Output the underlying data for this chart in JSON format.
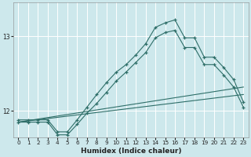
{
  "xlabel": "Humidex (Indice chaleur)",
  "bg_color": "#cde8ec",
  "grid_color": "#ffffff",
  "line_color": "#2e6e68",
  "xlim": [
    -0.5,
    23.5
  ],
  "ylim": [
    11.65,
    13.45
  ],
  "yticks": [
    12,
    13
  ],
  "xticks": [
    0,
    1,
    2,
    3,
    4,
    5,
    6,
    7,
    8,
    9,
    10,
    11,
    12,
    13,
    14,
    15,
    16,
    17,
    18,
    19,
    20,
    21,
    22,
    23
  ],
  "series1_x": [
    0,
    1,
    2,
    3,
    4,
    5,
    6,
    7,
    8,
    9,
    10,
    11,
    12,
    13,
    14,
    15,
    16,
    17,
    18,
    19,
    20,
    21,
    22,
    23
  ],
  "series1_y": [
    11.88,
    11.88,
    11.88,
    11.88,
    11.72,
    11.72,
    11.88,
    12.05,
    12.22,
    12.38,
    12.52,
    12.62,
    12.75,
    12.9,
    13.12,
    13.18,
    13.22,
    12.98,
    12.98,
    12.72,
    12.72,
    12.58,
    12.42,
    12.12
  ],
  "series2_x": [
    0,
    1,
    2,
    3,
    4,
    5,
    6,
    7,
    8,
    9,
    10,
    11,
    12,
    13,
    14,
    15,
    16,
    17,
    18,
    19,
    20,
    21,
    22,
    23
  ],
  "series2_y": [
    11.85,
    11.85,
    11.85,
    11.85,
    11.68,
    11.68,
    11.82,
    11.97,
    12.1,
    12.25,
    12.4,
    12.52,
    12.65,
    12.78,
    12.98,
    13.05,
    13.08,
    12.85,
    12.85,
    12.62,
    12.62,
    12.48,
    12.32,
    12.05
  ],
  "series3_x": [
    0,
    23
  ],
  "series3_y": [
    11.85,
    12.32
  ],
  "series4_x": [
    0,
    23
  ],
  "series4_y": [
    11.85,
    12.22
  ]
}
